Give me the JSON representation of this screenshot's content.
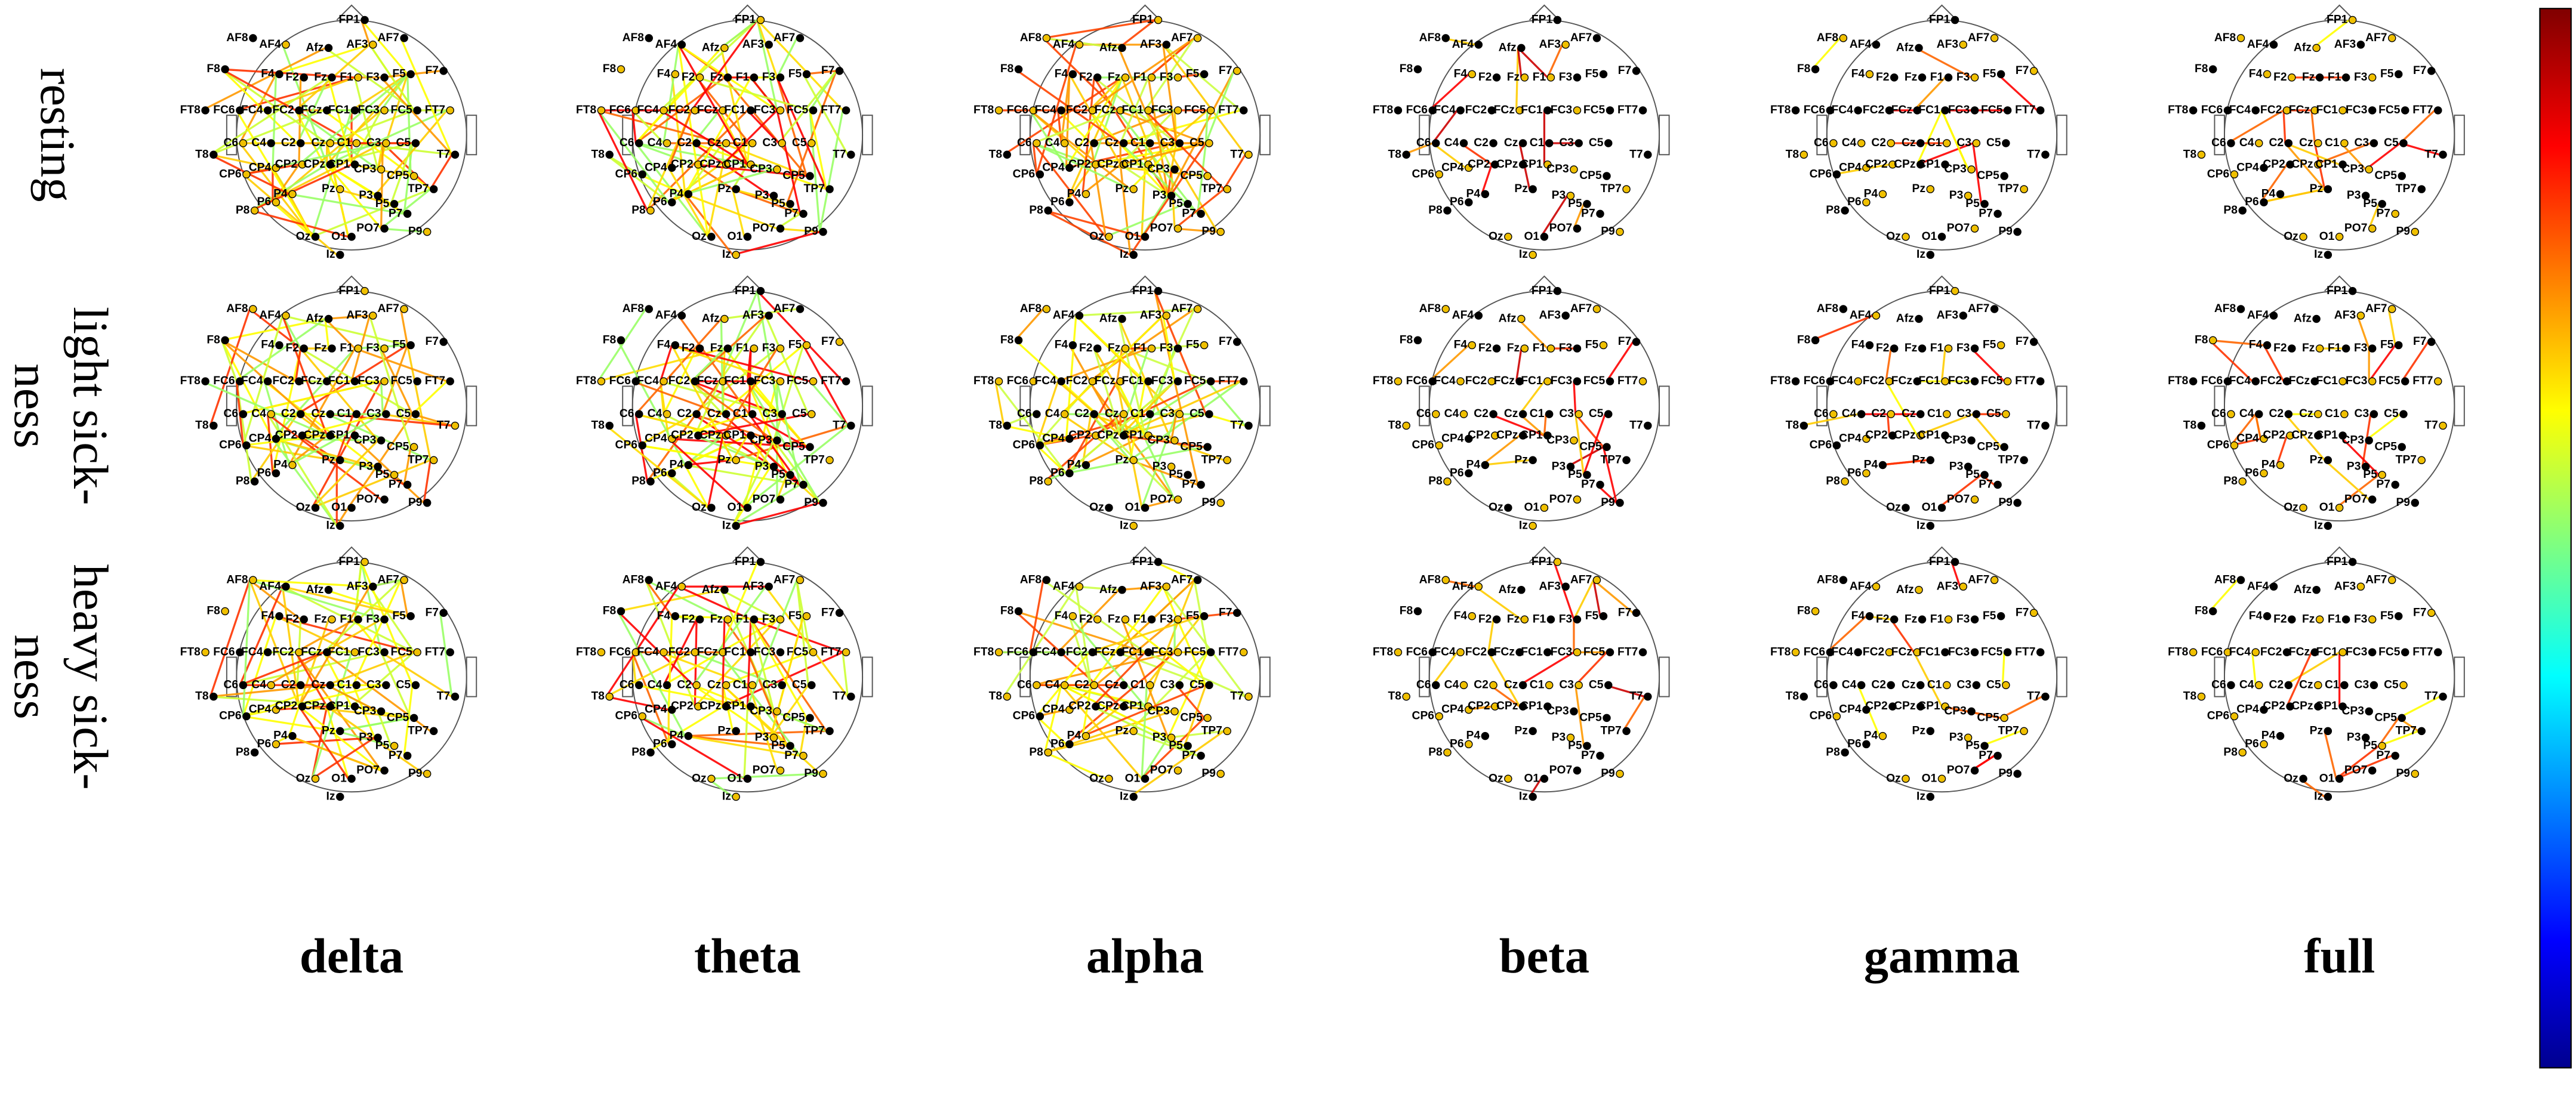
{
  "row_labels": [
    [
      "resting"
    ],
    [
      "light sick-",
      "ness"
    ],
    [
      "heavy sick-",
      "ness"
    ]
  ],
  "column_labels": [
    "delta",
    "theta",
    "alpha",
    "beta",
    "gamma",
    "full"
  ],
  "electrodes": [
    "FP1",
    "AF8",
    "AF4",
    "Afz",
    "AF3",
    "AF7",
    "F8",
    "F4",
    "F2",
    "Fz",
    "F1",
    "F3",
    "F5",
    "F7",
    "FT8",
    "FC6",
    "FC4",
    "FC2",
    "FCz",
    "FC1",
    "FC3",
    "FC5",
    "FT7",
    "C6",
    "C4",
    "C2",
    "Cz",
    "C1",
    "C3",
    "C5",
    "T8",
    "T7",
    "CP6",
    "CP4",
    "CP2",
    "CPz",
    "CP1",
    "CP3",
    "CP5",
    "TP7",
    "P8",
    "P6",
    "P4",
    "Pz",
    "P3",
    "P5",
    "P7",
    "Oz",
    "O1",
    "PO7",
    "P9",
    "Iz"
  ]
}
